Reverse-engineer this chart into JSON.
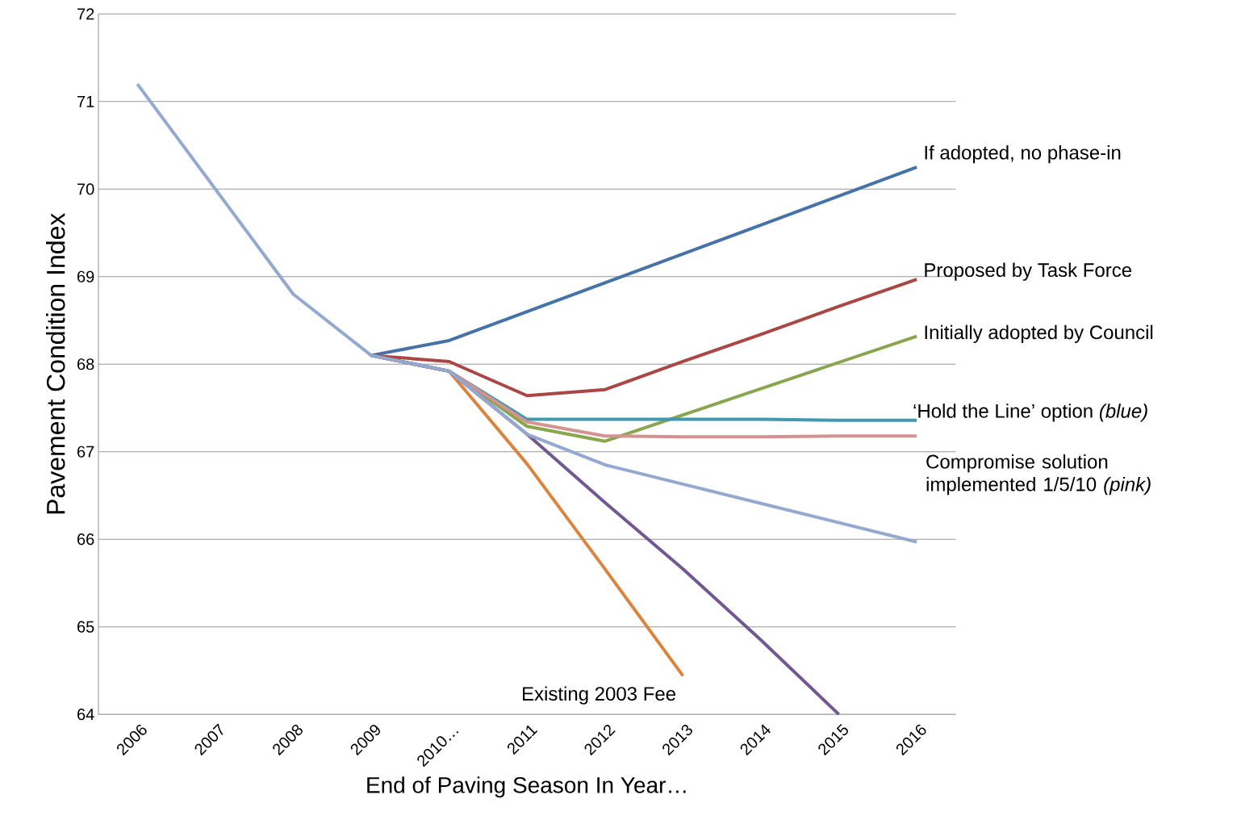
{
  "chart_data": {
    "type": "line",
    "xlabel": "End of Paving Season In Year…",
    "ylabel": "Pavement Condition Index",
    "categories": [
      "2006",
      "2007",
      "2008",
      "2009",
      "2010…",
      "2011",
      "2012",
      "2013",
      "2014",
      "2015",
      "2016"
    ],
    "ylim": [
      64,
      72
    ],
    "yticks": [
      64,
      65,
      66,
      67,
      68,
      69,
      70,
      71,
      72
    ],
    "grid": "y",
    "legend": false,
    "line_style": "solid",
    "marker": "none",
    "series": [
      {
        "name": "If adopted, no phase-in",
        "color": "#4572a7",
        "values": [
          null,
          null,
          null,
          68.1,
          68.27,
          68.6,
          68.93,
          69.26,
          69.59,
          69.92,
          70.25
        ]
      },
      {
        "name": "Proposed by Task Force",
        "color": "#aa4643",
        "values": [
          null,
          null,
          null,
          68.1,
          68.03,
          67.64,
          67.71,
          68.03,
          68.34,
          68.66,
          68.97
        ]
      },
      {
        "name": "Initially adopted by Council",
        "color": "#89a54e",
        "values": [
          null,
          null,
          null,
          68.1,
          67.92,
          67.29,
          67.12,
          67.42,
          67.72,
          68.02,
          68.32
        ]
      },
      {
        "name": "‘Hold the Line’ option *(blue)*",
        "color": "#4198af",
        "values": [
          null,
          null,
          null,
          68.1,
          67.92,
          67.37,
          67.37,
          67.37,
          67.37,
          67.36,
          67.36
        ]
      },
      {
        "name": "Compromise solution implemented 1/5/10 *(pink)*",
        "color": "#d49392",
        "values": [
          null,
          null,
          null,
          68.1,
          67.92,
          67.34,
          67.18,
          67.17,
          67.17,
          67.18,
          67.18
        ]
      },
      {
        "name": "Existing 2003 Fee",
        "color": "#db843d",
        "values": [
          null,
          null,
          null,
          68.1,
          67.92,
          66.86,
          65.66,
          64.44,
          null,
          null,
          null
        ]
      },
      {
        "color": "#71588f",
        "values": [
          null,
          null,
          null,
          68.1,
          67.92,
          67.2,
          66.42,
          65.66,
          64.85,
          64.0,
          null
        ]
      },
      {
        "color": "#93a9cf",
        "values": [
          71.2,
          70.0,
          68.8,
          68.1,
          67.92,
          67.2,
          66.85,
          66.63,
          66.41,
          66.19,
          65.97
        ]
      }
    ]
  }
}
